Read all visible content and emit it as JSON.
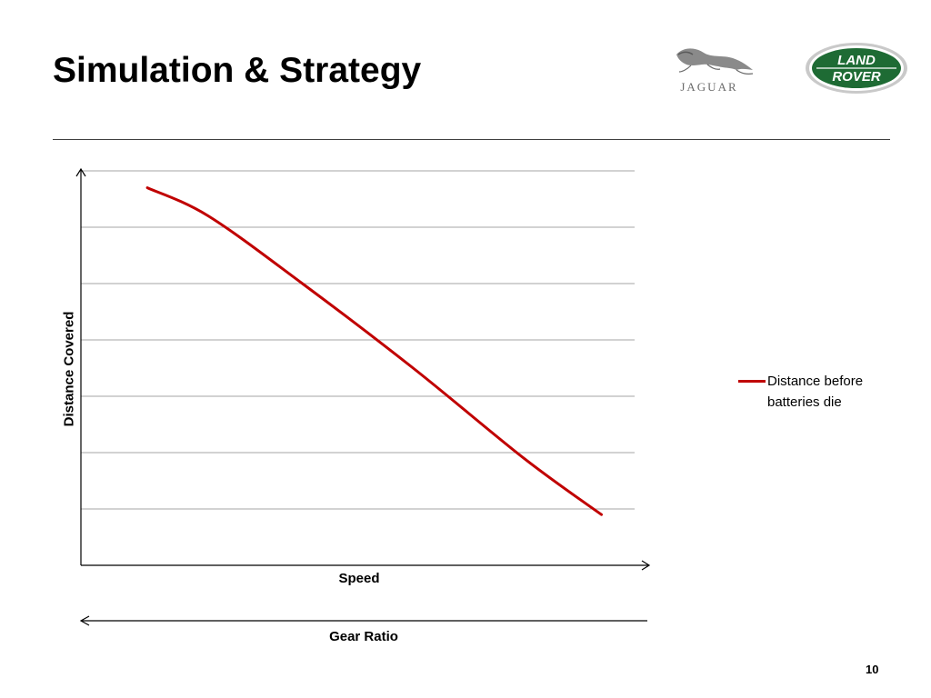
{
  "slide": {
    "title": "Simulation & Strategy",
    "page_number": "10"
  },
  "logos": {
    "jaguar": "JAGUAR",
    "land_rover_line1": "LAND",
    "land_rover_line2": "ROVER"
  },
  "colors": {
    "series": "#c00000",
    "gridline": "#a6a6a6",
    "axis": "#000000",
    "land_rover_green": "#1e6b34"
  },
  "chart_data": {
    "type": "line",
    "title": "",
    "xlabel": "Speed",
    "ylabel": "Distance Covered",
    "secondary_axis_label": "Gear Ratio",
    "secondary_axis_direction": "reversed",
    "xlim": [
      0,
      10
    ],
    "ylim": [
      0,
      7
    ],
    "grid": true,
    "legend": "right",
    "series": [
      {
        "name": "Distance before batteries die",
        "x": [
          1.2,
          2.3,
          4.0,
          6.0,
          8.0,
          9.4
        ],
        "y": [
          6.7,
          6.2,
          5.0,
          3.5,
          1.9,
          0.9
        ]
      }
    ]
  }
}
